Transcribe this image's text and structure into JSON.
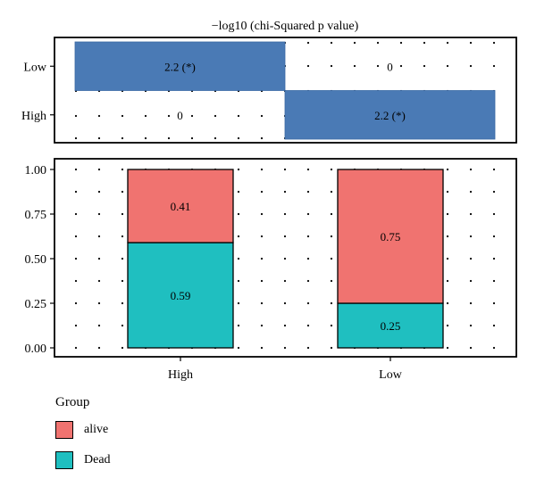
{
  "chart_data": [
    {
      "type": "heatmap",
      "title": "−log10 (chi-Squared p value)",
      "columns": [
        "High",
        "Low"
      ],
      "rows": [
        "Low",
        "High"
      ],
      "values": [
        [
          2.2,
          0
        ],
        [
          0,
          2.2
        ]
      ],
      "cell_labels": [
        [
          "2.2 (*)",
          "0"
        ],
        [
          "0",
          "2.2 (*)"
        ]
      ],
      "highlight_color": "#4a7ab5",
      "grid": "dotted"
    },
    {
      "type": "bar",
      "stacked": true,
      "categories": [
        "High",
        "Low"
      ],
      "series": [
        {
          "name": "alive",
          "values": [
            0.41,
            0.75
          ],
          "color": "#f07370"
        },
        {
          "name": "Dead",
          "values": [
            0.59,
            0.25
          ],
          "color": "#1fbfc0"
        }
      ],
      "ylim": [
        0,
        1
      ],
      "yticks": [
        "0.00",
        "0.25",
        "0.50",
        "0.75",
        "1.00"
      ],
      "grid": "dotted",
      "legend": {
        "title": "Group",
        "position": "bottom-left"
      }
    }
  ]
}
